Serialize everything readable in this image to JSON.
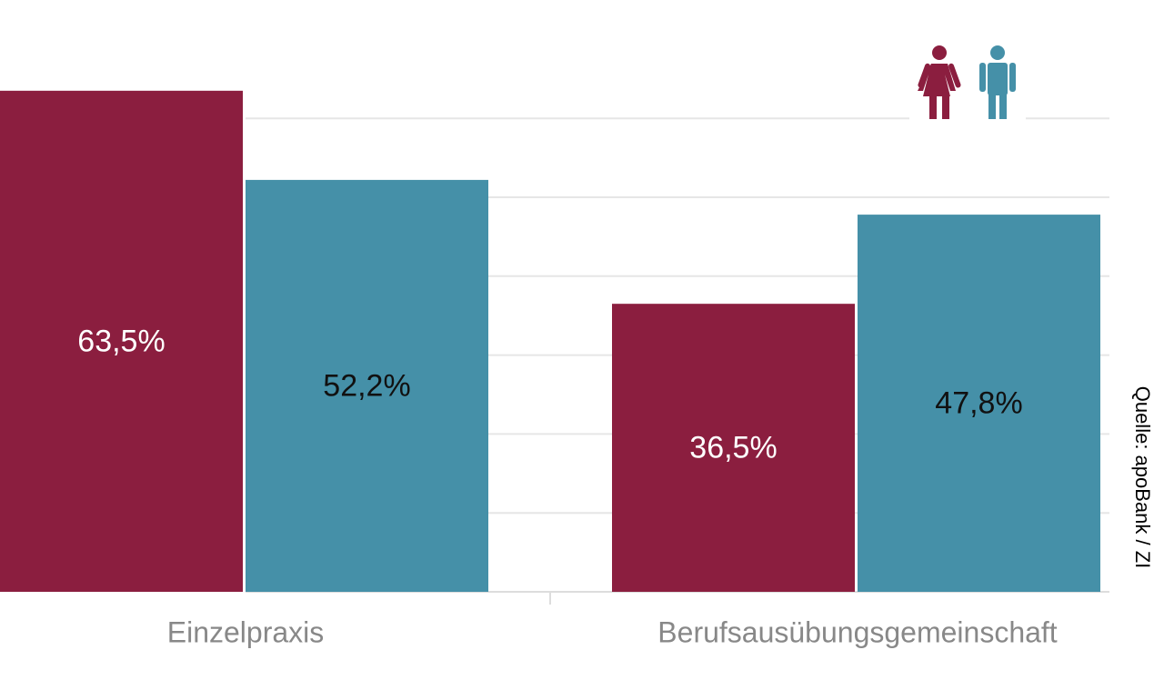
{
  "chart_data": {
    "type": "bar",
    "categories": [
      "Einzelpraxis",
      "Berufsausübungsgemeinschaft"
    ],
    "series": [
      {
        "color": "#8b1e3f",
        "values": [
          63.5,
          36.5
        ],
        "value_labels": [
          "63,5%",
          "36,5%"
        ]
      },
      {
        "color": "#4590a8",
        "values": [
          52.2,
          47.8
        ],
        "value_labels": [
          "52,2%",
          "47,8%"
        ]
      }
    ],
    "ylim": [
      0,
      75
    ],
    "yticks": [
      0,
      10,
      20,
      30,
      40,
      50,
      60
    ],
    "grid": true,
    "source": "Quelle: apoBank / ZI"
  }
}
